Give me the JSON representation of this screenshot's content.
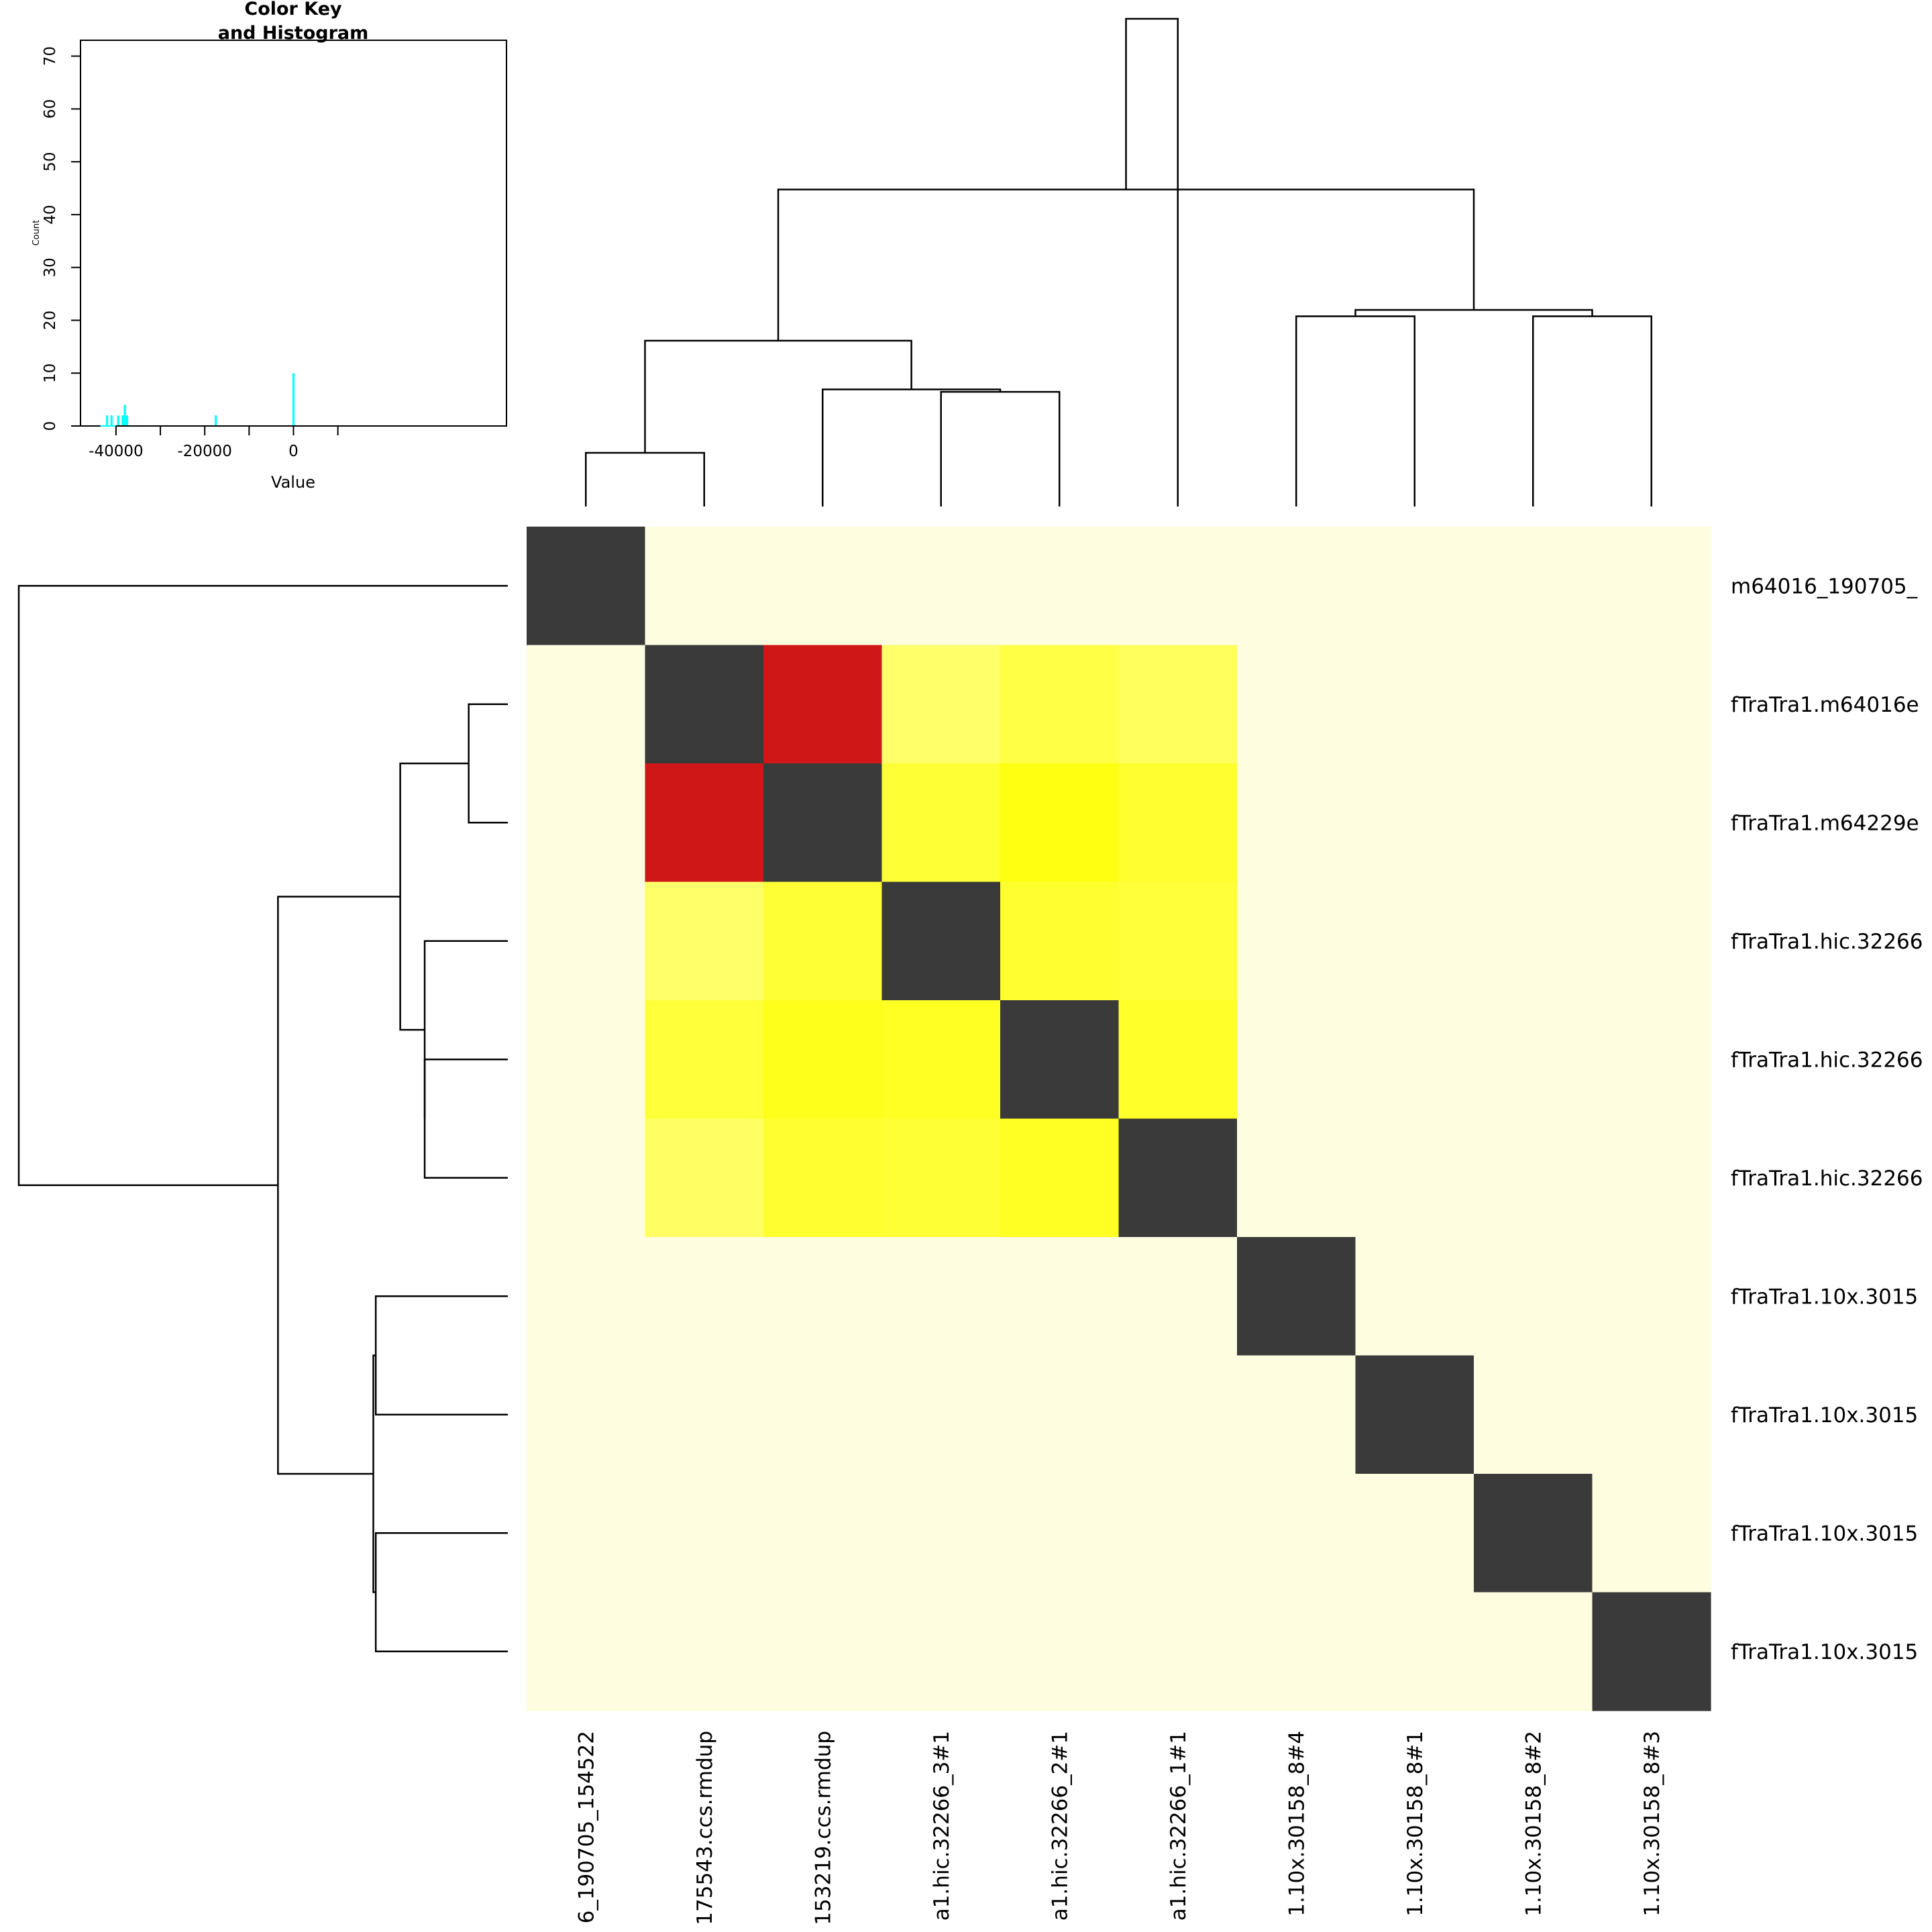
{
  "chart_data": [
    {
      "type": "histogram",
      "title_lines": [
        "Color Key",
        "and Histogram"
      ],
      "xlabel": "Value",
      "ylabel": "Count",
      "x_ticks": [
        -40000,
        -20000,
        0
      ],
      "x_tick_labels": [
        "-40000",
        "-20000",
        "0"
      ],
      "y_ticks": [
        0,
        10,
        20,
        30,
        40,
        50,
        60,
        70
      ],
      "y_tick_labels": [
        "0",
        "10",
        "20",
        "30",
        "40",
        "50",
        "60",
        "70"
      ],
      "xlim": [
        -48000,
        48000
      ],
      "ylim": [
        0,
        73
      ],
      "bar_color": "#00ffff",
      "bars": [
        {
          "x": -42000,
          "count": 2
        },
        {
          "x": -41000,
          "count": 2
        },
        {
          "x": -39500,
          "count": 2
        },
        {
          "x": -38500,
          "count": 2
        },
        {
          "x": -38000,
          "count": 4
        },
        {
          "x": -37500,
          "count": 2
        },
        {
          "x": -17500,
          "count": 2
        },
        {
          "x": 0,
          "count": 10
        }
      ]
    },
    {
      "type": "heatmap",
      "row_labels": [
        "m64016_190705_",
        "fTraTra1.m64016e",
        "fTraTra1.m64229e",
        "fTraTra1.hic.32266",
        "fTraTra1.hic.32266",
        "fTraTra1.hic.32266",
        "fTraTra1.10x.3015",
        "fTraTra1.10x.3015",
        "fTraTra1.10x.3015",
        "fTraTra1.10x.3015"
      ],
      "col_labels": [
        "6_190705_154522",
        "175543.ccs.rmdup",
        "153219.ccs.rmdup",
        "a1.hic.32266_3#1",
        "a1.hic.32266_2#1",
        "a1.hic.32266_1#1",
        "1.10x.30158_8#4",
        "1.10x.30158_8#1",
        "1.10x.30158_8#2",
        "1.10x.30158_8#3"
      ],
      "cell_colors": [
        [
          "#3a3a3a",
          "#fefde0",
          "#fefde0",
          "#fefde0",
          "#fefde0",
          "#fefde0",
          "#fefde0",
          "#fefde0",
          "#fefde0",
          "#fefde0"
        ],
        [
          "#fefde0",
          "#3a3a3a",
          "#cf1717",
          "#ffff6a",
          "#ffff45",
          "#ffff5e",
          "#fefde0",
          "#fefde0",
          "#fefde0",
          "#fefde0"
        ],
        [
          "#fefde0",
          "#cf1717",
          "#3a3a3a",
          "#ffff35",
          "#ffff12",
          "#ffff2f",
          "#fefde0",
          "#fefde0",
          "#fefde0",
          "#fefde0"
        ],
        [
          "#fefde0",
          "#ffff6a",
          "#ffff35",
          "#3a3a3a",
          "#ffff2f",
          "#ffff3a",
          "#fefde0",
          "#fefde0",
          "#fefde0",
          "#fefde0"
        ],
        [
          "#fefde0",
          "#ffff3a",
          "#ffff1c",
          "#ffff24",
          "#3a3a3a",
          "#ffff2a",
          "#fefde0",
          "#fefde0",
          "#fefde0",
          "#fefde0"
        ],
        [
          "#fefde0",
          "#ffff63",
          "#ffff30",
          "#ffff35",
          "#ffff24",
          "#3a3a3a",
          "#fefde0",
          "#fefde0",
          "#fefde0",
          "#fefde0"
        ],
        [
          "#fefde0",
          "#fefde0",
          "#fefde0",
          "#fefde0",
          "#fefde0",
          "#fefde0",
          "#3a3a3a",
          "#fefde0",
          "#fefde0",
          "#fefde0"
        ],
        [
          "#fefde0",
          "#fefde0",
          "#fefde0",
          "#fefde0",
          "#fefde0",
          "#fefde0",
          "#fefde0",
          "#3a3a3a",
          "#fefde0",
          "#fefde0"
        ],
        [
          "#fefde0",
          "#fefde0",
          "#fefde0",
          "#fefde0",
          "#fefde0",
          "#fefde0",
          "#fefde0",
          "#fefde0",
          "#3a3a3a",
          "#fefde0"
        ],
        [
          "#fefde0",
          "#fefde0",
          "#fefde0",
          "#fefde0",
          "#fefde0",
          "#fefde0",
          "#fefde0",
          "#fefde0",
          "#fefde0",
          "#3a3a3a"
        ]
      ],
      "column_dendrogram": [
        {
          "left": 1,
          "right": 2,
          "height": 0.11
        },
        {
          "left": 4,
          "right": 5,
          "height": 0.235
        },
        {
          "left": 3,
          "right": -2,
          "height": 0.24
        },
        {
          "left": -1,
          "right": -3,
          "height": 0.34
        },
        {
          "left": 7,
          "right": 8,
          "height": 0.39
        },
        {
          "left": 9,
          "right": 10,
          "height": 0.39
        },
        {
          "left": -5,
          "right": -6,
          "height": 0.403
        },
        {
          "left": -4,
          "right": -7,
          "height": 0.65
        },
        {
          "left": 6,
          "right": -8,
          "height": 1.0
        }
      ],
      "row_dendrogram": [
        {
          "left": 2,
          "right": 3,
          "height": 0.08
        },
        {
          "left": 5,
          "right": 6,
          "height": 0.17
        },
        {
          "left": 4,
          "right": -2,
          "height": 0.17
        },
        {
          "left": -1,
          "right": -3,
          "height": 0.22
        },
        {
          "left": 7,
          "right": 8,
          "height": 0.27
        },
        {
          "left": 9,
          "right": 10,
          "height": 0.27
        },
        {
          "left": -5,
          "right": -6,
          "height": 0.275
        },
        {
          "left": -4,
          "right": -7,
          "height": 0.47
        },
        {
          "left": 1,
          "right": -8,
          "height": 1.0
        }
      ]
    }
  ]
}
